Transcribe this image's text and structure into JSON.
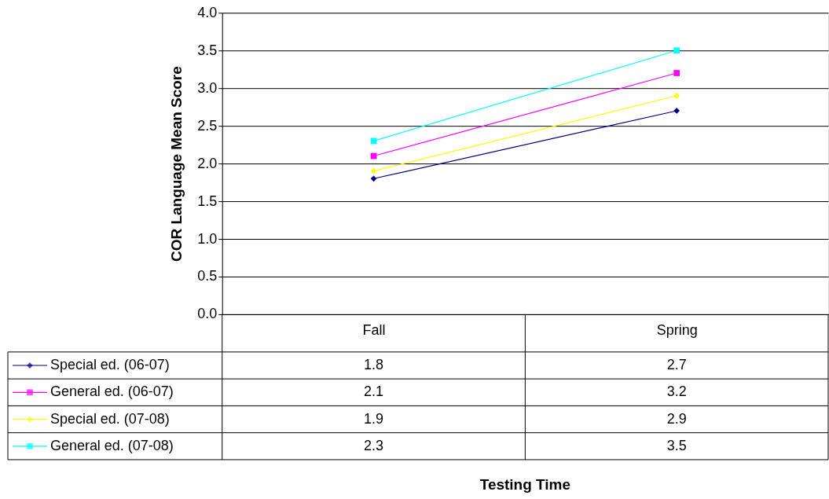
{
  "chart_data": {
    "type": "line",
    "annotations": [
      "Testing Time"
    ],
    "ylabel": "COR Language Mean Score",
    "categories": [
      "Fall",
      "Spring"
    ],
    "ylim": [
      0,
      4
    ],
    "yticks": [
      {
        "value": 0,
        "label": "0.0"
      },
      0.5,
      {
        "value": 1,
        "label": "1.0"
      },
      1.5,
      {
        "value": 2,
        "label": "2.0"
      },
      2.5,
      {
        "value": 3,
        "label": "3.0"
      },
      3.5,
      {
        "value": 4,
        "label": "4.0"
      }
    ],
    "grid": "y",
    "data_labels": true,
    "line_style": "solid",
    "legend": "bottom left",
    "series": [
      {
        "name": "Special ed. (06-07)",
        "color": "#000080",
        "marker": "diamond",
        "values": [
          1.8,
          2.7
        ]
      },
      {
        "name": "General ed. (06-07)",
        "color": "#ff00ff",
        "marker": "square",
        "values": [
          2.1,
          3.2
        ]
      },
      {
        "name": "Special ed. (07-08)",
        "color": "#ffff00",
        "marker": "diamond",
        "values": [
          1.9,
          2.9
        ]
      },
      {
        "name": "General ed. (07-08)",
        "color": "#00ffff",
        "marker": "square",
        "values": [
          2.3,
          3.5
        ]
      }
    ]
  }
}
